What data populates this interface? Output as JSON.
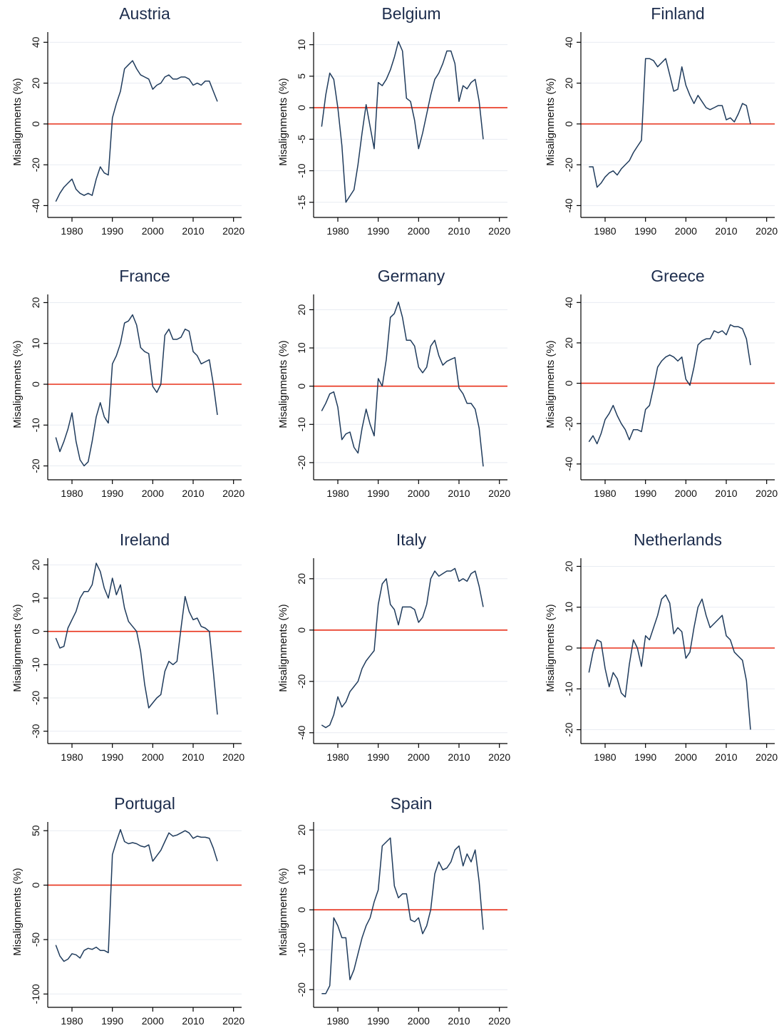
{
  "figure": {
    "colors": {
      "series": "#1f3b5c",
      "reference_line": "#e8311a",
      "title": "#1c2c4c",
      "grid": "#e8ecf2"
    }
  },
  "chart_data": [
    {
      "type": "line",
      "title": "Austria",
      "xlabel": "",
      "ylabel": "Misalignments (%)",
      "xlim": [
        1974,
        2022
      ],
      "ylim": [
        -43,
        45
      ],
      "xticks": [
        1980,
        1990,
        2000,
        2010,
        2020
      ],
      "yticks": [
        -40,
        -20,
        0,
        20,
        40
      ],
      "reference_line": 0,
      "grid": "horizontal",
      "x": [
        1976,
        1977,
        1978,
        1979,
        1980,
        1981,
        1982,
        1983,
        1984,
        1985,
        1986,
        1987,
        1988,
        1989,
        1990,
        1991,
        1992,
        1993,
        1994,
        1995,
        1996,
        1997,
        1998,
        1999,
        2000,
        2001,
        2002,
        2003,
        2004,
        2005,
        2006,
        2007,
        2008,
        2009,
        2010,
        2011,
        2012,
        2013,
        2014,
        2015,
        2016
      ],
      "y": [
        -38,
        -34,
        -31,
        -29,
        -27,
        -32,
        -34,
        -35,
        -34,
        -35,
        -27,
        -21,
        -24,
        -25,
        3,
        10,
        16,
        27,
        29,
        31,
        27,
        24,
        23,
        22,
        17,
        19,
        20,
        23,
        24,
        22,
        22,
        23,
        23,
        22,
        19,
        20,
        19,
        21,
        21,
        16,
        11
      ]
    },
    {
      "type": "line",
      "title": "Belgium",
      "xlabel": "",
      "ylabel": "Misalignments (%)",
      "xlim": [
        1974,
        2022
      ],
      "ylim": [
        -16.5,
        12
      ],
      "xticks": [
        1980,
        1990,
        2000,
        2010,
        2020
      ],
      "yticks": [
        -15,
        -10,
        -5,
        0,
        5,
        10
      ],
      "reference_line": 0,
      "grid": "horizontal",
      "x": [
        1976,
        1977,
        1978,
        1979,
        1980,
        1981,
        1982,
        1983,
        1984,
        1985,
        1986,
        1987,
        1988,
        1989,
        1990,
        1991,
        1992,
        1993,
        1994,
        1995,
        1996,
        1997,
        1998,
        1999,
        2000,
        2001,
        2002,
        2003,
        2004,
        2005,
        2006,
        2007,
        2008,
        2009,
        2010,
        2011,
        2012,
        2013,
        2014,
        2015,
        2016
      ],
      "y": [
        -3,
        2,
        5.5,
        4.5,
        0,
        -6,
        -15,
        -14,
        -13,
        -9,
        -4,
        0.5,
        -3,
        -6.5,
        4,
        3.5,
        4.5,
        6,
        8,
        10.5,
        9,
        1.5,
        1,
        -2,
        -6.5,
        -4,
        -1,
        2,
        4.5,
        5.5,
        7,
        9,
        9,
        7,
        1,
        3.5,
        3,
        4,
        4.5,
        1,
        -5
      ]
    },
    {
      "type": "line",
      "title": "Finland",
      "xlabel": "",
      "ylabel": "Misalignments (%)",
      "xlim": [
        1974,
        2022
      ],
      "ylim": [
        -43,
        45
      ],
      "xticks": [
        1980,
        1990,
        2000,
        2010,
        2020
      ],
      "yticks": [
        -40,
        -20,
        0,
        20,
        40
      ],
      "reference_line": 0,
      "grid": "horizontal",
      "x": [
        1976,
        1977,
        1978,
        1979,
        1980,
        1981,
        1982,
        1983,
        1984,
        1985,
        1986,
        1987,
        1988,
        1989,
        1990,
        1991,
        1992,
        1993,
        1994,
        1995,
        1996,
        1997,
        1998,
        1999,
        2000,
        2001,
        2002,
        2003,
        2004,
        2005,
        2006,
        2007,
        2008,
        2009,
        2010,
        2011,
        2012,
        2013,
        2014,
        2015,
        2016
      ],
      "y": [
        -21,
        -21,
        -31,
        -29,
        -26,
        -24,
        -23,
        -25,
        -22,
        -20,
        -18,
        -14,
        -11,
        -8,
        32,
        32,
        31,
        28,
        30,
        32,
        24,
        16,
        17,
        28,
        19,
        14,
        10,
        14,
        11,
        8,
        7,
        8,
        9,
        9,
        2,
        3,
        1,
        5,
        10,
        9,
        0
      ]
    },
    {
      "type": "line",
      "title": "France",
      "xlabel": "",
      "ylabel": "Misalignments (%)",
      "xlim": [
        1974,
        2022
      ],
      "ylim": [
        -22,
        22
      ],
      "xticks": [
        1980,
        1990,
        2000,
        2010,
        2020
      ],
      "yticks": [
        -20,
        -10,
        0,
        10,
        20
      ],
      "reference_line": 0,
      "grid": "horizontal",
      "x": [
        1976,
        1977,
        1978,
        1979,
        1980,
        1981,
        1982,
        1983,
        1984,
        1985,
        1986,
        1987,
        1988,
        1989,
        1990,
        1991,
        1992,
        1993,
        1994,
        1995,
        1996,
        1997,
        1998,
        1999,
        2000,
        2001,
        2002,
        2003,
        2004,
        2005,
        2006,
        2007,
        2008,
        2009,
        2010,
        2011,
        2012,
        2013,
        2014,
        2015,
        2016
      ],
      "y": [
        -13,
        -16.5,
        -14,
        -11,
        -7,
        -14,
        -18.5,
        -20,
        -19,
        -14,
        -8,
        -4.5,
        -8,
        -9.5,
        5,
        7,
        10,
        15,
        15.5,
        17,
        14.5,
        9,
        8,
        7.5,
        -0.5,
        -2,
        0,
        12,
        13.5,
        11,
        11,
        11.5,
        13.5,
        13,
        8,
        7,
        5,
        5.5,
        6,
        0,
        -7.5
      ]
    },
    {
      "type": "line",
      "title": "Germany",
      "xlabel": "",
      "ylabel": "Misalignments (%)",
      "xlim": [
        1974,
        2022
      ],
      "ylim": [
        -23,
        24
      ],
      "xticks": [
        1980,
        1990,
        2000,
        2010,
        2020
      ],
      "yticks": [
        -20,
        -10,
        0,
        10,
        20
      ],
      "reference_line": 0,
      "grid": "horizontal",
      "x": [
        1976,
        1977,
        1978,
        1979,
        1980,
        1981,
        1982,
        1983,
        1984,
        1985,
        1986,
        1987,
        1988,
        1989,
        1990,
        1991,
        1992,
        1993,
        1994,
        1995,
        1996,
        1997,
        1998,
        1999,
        2000,
        2001,
        2002,
        2003,
        2004,
        2005,
        2006,
        2007,
        2008,
        2009,
        2010,
        2011,
        2012,
        2013,
        2014,
        2015,
        2016
      ],
      "y": [
        -6.5,
        -4.5,
        -2,
        -1.5,
        -5.5,
        -14,
        -12.5,
        -12,
        -16,
        -17.5,
        -11,
        -6,
        -10,
        -13,
        2,
        0,
        7,
        18,
        19,
        22,
        18,
        12,
        12,
        10.5,
        5,
        3.5,
        5,
        10.5,
        12,
        8,
        5.5,
        6.5,
        7,
        7.5,
        -0.5,
        -2,
        -4.5,
        -4.5,
        -6,
        -11,
        -21
      ]
    },
    {
      "type": "line",
      "title": "Greece",
      "xlabel": "",
      "ylabel": "Misalignments (%)",
      "xlim": [
        1974,
        2022
      ],
      "ylim": [
        -45,
        44
      ],
      "xticks": [
        1980,
        1990,
        2000,
        2010,
        2020
      ],
      "yticks": [
        -40,
        -20,
        0,
        20,
        40
      ],
      "reference_line": 0,
      "grid": "horizontal",
      "x": [
        1976,
        1977,
        1978,
        1979,
        1980,
        1981,
        1982,
        1983,
        1984,
        1985,
        1986,
        1987,
        1988,
        1989,
        1990,
        1991,
        1992,
        1993,
        1994,
        1995,
        1996,
        1997,
        1998,
        1999,
        2000,
        2001,
        2002,
        2003,
        2004,
        2005,
        2006,
        2007,
        2008,
        2009,
        2010,
        2011,
        2012,
        2013,
        2014,
        2015,
        2016
      ],
      "y": [
        -29,
        -26,
        -30,
        -25,
        -18,
        -15,
        -11,
        -16,
        -20,
        -23,
        -28,
        -23,
        -23,
        -24,
        -13,
        -11,
        -2,
        8,
        11,
        13,
        14,
        13,
        11,
        13,
        2,
        -1,
        8,
        19,
        21,
        22,
        22,
        26,
        25,
        26,
        24,
        29,
        28,
        28,
        27,
        22,
        9
      ]
    },
    {
      "type": "line",
      "title": "Ireland",
      "xlabel": "",
      "ylabel": "Misalignments (%)",
      "xlim": [
        1974,
        2022
      ],
      "ylim": [
        -32,
        22
      ],
      "xticks": [
        1980,
        1990,
        2000,
        2010,
        2020
      ],
      "yticks": [
        -30,
        -20,
        -10,
        0,
        10,
        20
      ],
      "reference_line": 0,
      "grid": "horizontal",
      "x": [
        1976,
        1977,
        1978,
        1979,
        1980,
        1981,
        1982,
        1983,
        1984,
        1985,
        1986,
        1987,
        1988,
        1989,
        1990,
        1991,
        1992,
        1993,
        1994,
        1995,
        1996,
        1997,
        1998,
        1999,
        2000,
        2001,
        2002,
        2003,
        2004,
        2005,
        2006,
        2007,
        2008,
        2009,
        2010,
        2011,
        2012,
        2013,
        2014,
        2015,
        2016
      ],
      "y": [
        -2,
        -5,
        -4.5,
        1,
        3.5,
        6,
        10,
        12,
        12,
        14,
        20.5,
        18,
        13,
        10,
        16,
        11,
        14,
        7,
        3,
        1.5,
        0,
        -6,
        -16,
        -23,
        -21.5,
        -20,
        -19,
        -12,
        -9,
        -10,
        -9,
        1,
        10.5,
        6,
        3.5,
        4,
        1.5,
        1,
        0,
        -12,
        -25
      ]
    },
    {
      "type": "line",
      "title": "Italy",
      "xlabel": "",
      "ylabel": "Misalignments (%)",
      "xlim": [
        1974,
        2022
      ],
      "ylim": [
        -42,
        28
      ],
      "xticks": [
        1980,
        1990,
        2000,
        2010,
        2020
      ],
      "yticks": [
        -40,
        -20,
        0,
        20
      ],
      "reference_line": 0,
      "grid": "horizontal",
      "x": [
        1976,
        1977,
        1978,
        1979,
        1980,
        1981,
        1982,
        1983,
        1984,
        1985,
        1986,
        1987,
        1988,
        1989,
        1990,
        1991,
        1992,
        1993,
        1994,
        1995,
        1996,
        1997,
        1998,
        1999,
        2000,
        2001,
        2002,
        2003,
        2004,
        2005,
        2006,
        2007,
        2008,
        2009,
        2010,
        2011,
        2012,
        2013,
        2014,
        2015,
        2016
      ],
      "y": [
        -37,
        -38,
        -37,
        -33,
        -26,
        -30,
        -28,
        -24,
        -22,
        -20,
        -15,
        -12,
        -10,
        -8,
        10,
        18,
        20,
        10,
        8,
        2,
        9,
        9,
        9,
        8,
        3,
        5,
        10,
        20,
        23,
        21,
        22,
        23,
        23,
        24,
        19,
        20,
        19,
        22,
        23,
        17,
        9
      ]
    },
    {
      "type": "line",
      "title": "Netherlands",
      "xlabel": "",
      "ylabel": "Misalignments (%)",
      "xlim": [
        1974,
        2022
      ],
      "ylim": [
        -22,
        22
      ],
      "xticks": [
        1980,
        1990,
        2000,
        2010,
        2020
      ],
      "yticks": [
        -20,
        -10,
        0,
        10,
        20
      ],
      "reference_line": 0,
      "grid": "horizontal",
      "x": [
        1976,
        1977,
        1978,
        1979,
        1980,
        1981,
        1982,
        1983,
        1984,
        1985,
        1986,
        1987,
        1988,
        1989,
        1990,
        1991,
        1992,
        1993,
        1994,
        1995,
        1996,
        1997,
        1998,
        1999,
        2000,
        2001,
        2002,
        2003,
        2004,
        2005,
        2006,
        2007,
        2008,
        2009,
        2010,
        2011,
        2012,
        2013,
        2014,
        2015,
        2016
      ],
      "y": [
        -6,
        -1,
        2,
        1.5,
        -5,
        -9.5,
        -6,
        -7.5,
        -11,
        -12,
        -4,
        2,
        0,
        -4.5,
        3,
        2,
        5,
        8,
        12,
        13,
        11,
        3.5,
        5,
        4,
        -2.5,
        -1,
        5,
        10,
        12,
        8,
        5,
        6,
        7,
        8,
        3,
        2,
        -1,
        -2,
        -3,
        -8,
        -20
      ]
    },
    {
      "type": "line",
      "title": "Portugal",
      "xlabel": "",
      "ylabel": "Misalignments (%)",
      "xlim": [
        1974,
        2022
      ],
      "ylim": [
        -107,
        58
      ],
      "xticks": [
        1980,
        1990,
        2000,
        2010,
        2020
      ],
      "yticks": [
        -100,
        -50,
        0,
        50
      ],
      "reference_line": 0,
      "grid": "horizontal",
      "x": [
        1976,
        1977,
        1978,
        1979,
        1980,
        1981,
        1982,
        1983,
        1984,
        1985,
        1986,
        1987,
        1988,
        1989,
        1990,
        1991,
        1992,
        1993,
        1994,
        1995,
        1996,
        1997,
        1998,
        1999,
        2000,
        2001,
        2002,
        2003,
        2004,
        2005,
        2006,
        2007,
        2008,
        2009,
        2010,
        2011,
        2012,
        2013,
        2014,
        2015,
        2016
      ],
      "y": [
        -55,
        -65,
        -70,
        -68,
        -63,
        -64,
        -67,
        -60,
        -58,
        -59,
        -57,
        -60,
        -60,
        -62,
        28,
        40,
        51,
        40,
        38,
        39,
        38,
        36,
        35,
        37,
        22,
        27,
        32,
        40,
        48,
        45,
        46,
        48,
        50,
        48,
        43,
        45,
        44,
        44,
        43,
        34,
        22
      ]
    },
    {
      "type": "line",
      "title": "Spain",
      "xlabel": "",
      "ylabel": "Misalignments (%)",
      "xlim": [
        1974,
        2022
      ],
      "ylim": [
        -23,
        22
      ],
      "xticks": [
        1980,
        1990,
        2000,
        2010,
        2020
      ],
      "yticks": [
        -20,
        -10,
        0,
        10,
        20
      ],
      "reference_line": 0,
      "grid": "horizontal",
      "x": [
        1976,
        1977,
        1978,
        1979,
        1980,
        1981,
        1982,
        1983,
        1984,
        1985,
        1986,
        1987,
        1988,
        1989,
        1990,
        1991,
        1992,
        1993,
        1994,
        1995,
        1996,
        1997,
        1998,
        1999,
        2000,
        2001,
        2002,
        2003,
        2004,
        2005,
        2006,
        2007,
        2008,
        2009,
        2010,
        2011,
        2012,
        2013,
        2014,
        2015,
        2016
      ],
      "y": [
        -21,
        -21,
        -19,
        -2,
        -4,
        -7,
        -7,
        -17.5,
        -15,
        -11,
        -7,
        -4,
        -2,
        2,
        5,
        16,
        17,
        18,
        6,
        3,
        4,
        4,
        -2.5,
        -3,
        -2,
        -6,
        -4,
        0,
        9,
        12,
        10,
        10.5,
        12,
        15,
        16,
        11,
        14,
        12,
        15,
        7,
        -5
      ]
    }
  ]
}
